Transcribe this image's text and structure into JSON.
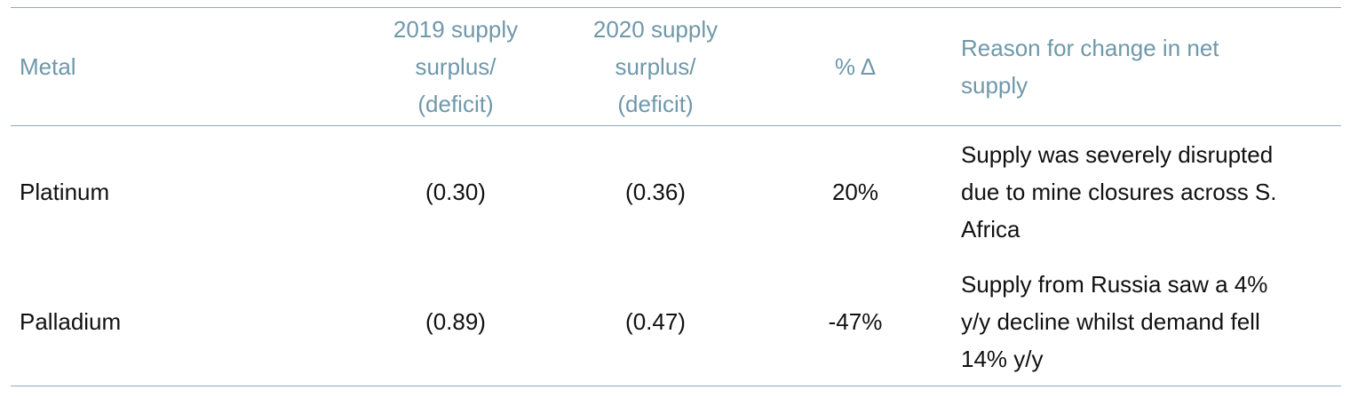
{
  "table": {
    "header": [
      [
        "Metal"
      ],
      [
        "2019 supply",
        "surplus/",
        "(deficit)"
      ],
      [
        "2020 supply",
        "surplus/",
        "(deficit)"
      ],
      [
        "% Δ"
      ],
      [
        "Reason for change in net",
        "supply"
      ]
    ],
    "rows": [
      [
        [
          "Platinum"
        ],
        [
          "(0.30)"
        ],
        [
          "(0.36)"
        ],
        [
          "20%"
        ],
        [
          "Supply was severely disrupted",
          "due to mine closures across S.",
          "Africa"
        ]
      ],
      [
        [
          "Palladium"
        ],
        [
          "(0.89)"
        ],
        [
          "(0.47)"
        ],
        [
          "-47%"
        ],
        [
          "Supply from Russia saw a 4%",
          "y/y decline whilst demand fell",
          "14% y/y"
        ]
      ]
    ]
  }
}
